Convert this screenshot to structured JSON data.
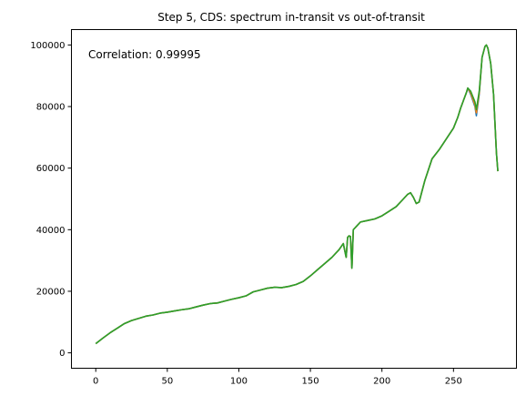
{
  "chart_data": {
    "type": "line",
    "title": "Step 5, CDS: spectrum in-transit vs out-of-transit",
    "xlabel": "",
    "ylabel": "",
    "xlim": [
      -17,
      294
    ],
    "ylim": [
      -5000,
      105000
    ],
    "xticks": [
      0,
      50,
      100,
      150,
      200,
      250
    ],
    "yticks": [
      0,
      20000,
      40000,
      60000,
      80000,
      100000
    ],
    "grid": false,
    "annotation": "Correlation: 0.99995",
    "series": [
      {
        "color": "#1f77b4",
        "x": [
          0,
          5,
          10,
          15,
          20,
          25,
          30,
          35,
          40,
          45,
          50,
          55,
          60,
          65,
          70,
          75,
          80,
          85,
          90,
          95,
          100,
          105,
          110,
          115,
          120,
          125,
          130,
          135,
          140,
          145,
          150,
          155,
          160,
          165,
          170,
          173,
          175,
          176,
          177,
          178,
          179,
          180,
          181,
          182,
          185,
          190,
          195,
          200,
          205,
          210,
          215,
          218,
          220,
          222,
          224,
          226,
          230,
          235,
          240,
          245,
          250,
          253,
          255,
          257,
          259,
          260,
          262,
          265,
          266,
          268,
          270,
          272,
          273,
          274,
          276,
          278,
          280,
          281
        ],
        "y": [
          3000,
          4800,
          6500,
          8000,
          9500,
          10500,
          11200,
          11900,
          12300,
          12900,
          13200,
          13600,
          14000,
          14300,
          14900,
          15500,
          16000,
          16200,
          16800,
          17400,
          17900,
          18500,
          19800,
          20400,
          21000,
          21300,
          21200,
          21600,
          22200,
          23200,
          25000,
          27000,
          29000,
          31000,
          33500,
          35500,
          31000,
          37500,
          38000,
          37800,
          27500,
          40000,
          40500,
          41000,
          42500,
          43000,
          43500,
          44500,
          46000,
          47500,
          50000,
          51500,
          52000,
          50500,
          48500,
          49000,
          56000,
          63000,
          66000,
          69500,
          73000,
          76500,
          79500,
          82000,
          84500,
          86000,
          84000,
          80000,
          77000,
          84000,
          96000,
          99500,
          100000,
          99000,
          94000,
          84000,
          65000,
          59000
        ]
      },
      {
        "color": "#ff7f0e",
        "x": [
          0,
          5,
          10,
          15,
          20,
          25,
          30,
          35,
          40,
          45,
          50,
          55,
          60,
          65,
          70,
          75,
          80,
          85,
          90,
          95,
          100,
          105,
          110,
          115,
          120,
          125,
          130,
          135,
          140,
          145,
          150,
          155,
          160,
          165,
          170,
          173,
          175,
          176,
          177,
          178,
          179,
          180,
          181,
          182,
          185,
          190,
          195,
          200,
          205,
          210,
          215,
          218,
          220,
          222,
          224,
          226,
          230,
          235,
          240,
          245,
          250,
          253,
          255,
          257,
          259,
          260,
          262,
          265,
          266,
          268,
          270,
          272,
          273,
          274,
          276,
          278,
          280,
          281
        ],
        "y": [
          3000,
          4800,
          6500,
          8000,
          9500,
          10500,
          11200,
          11900,
          12300,
          12900,
          13200,
          13600,
          14000,
          14300,
          14900,
          15500,
          16000,
          16200,
          16800,
          17400,
          17900,
          18500,
          19800,
          20400,
          21000,
          21300,
          21200,
          21600,
          22200,
          23200,
          25000,
          27000,
          29000,
          31000,
          33500,
          35500,
          31000,
          37500,
          38000,
          37800,
          27500,
          40000,
          40500,
          41000,
          42500,
          43000,
          43500,
          44500,
          46000,
          47500,
          50000,
          51500,
          52000,
          50500,
          48500,
          49000,
          56000,
          63000,
          66000,
          69500,
          73000,
          76500,
          79500,
          82000,
          84500,
          86000,
          84500,
          80500,
          78000,
          84500,
          96000,
          99500,
          100000,
          99000,
          94000,
          84000,
          65000,
          59000
        ]
      },
      {
        "color": "#2ca02c",
        "x": [
          0,
          5,
          10,
          15,
          20,
          25,
          30,
          35,
          40,
          45,
          50,
          55,
          60,
          65,
          70,
          75,
          80,
          85,
          90,
          95,
          100,
          105,
          110,
          115,
          120,
          125,
          130,
          135,
          140,
          145,
          150,
          155,
          160,
          165,
          170,
          173,
          175,
          176,
          177,
          178,
          179,
          180,
          181,
          182,
          185,
          190,
          195,
          200,
          205,
          210,
          215,
          218,
          220,
          222,
          224,
          226,
          230,
          235,
          240,
          245,
          250,
          253,
          255,
          257,
          259,
          260,
          262,
          265,
          266,
          268,
          270,
          272,
          273,
          274,
          276,
          278,
          280,
          281
        ],
        "y": [
          3000,
          4800,
          6500,
          8000,
          9500,
          10500,
          11200,
          11900,
          12300,
          12900,
          13200,
          13600,
          14000,
          14300,
          14900,
          15500,
          16000,
          16200,
          16800,
          17400,
          17900,
          18500,
          19800,
          20400,
          21000,
          21300,
          21200,
          21600,
          22200,
          23200,
          25000,
          27000,
          29000,
          31000,
          33500,
          35500,
          31000,
          37500,
          38000,
          37800,
          27500,
          40000,
          40500,
          41000,
          42500,
          43000,
          43500,
          44500,
          46000,
          47500,
          50000,
          51500,
          52000,
          50500,
          48500,
          49000,
          56000,
          63000,
          66000,
          69500,
          73000,
          76500,
          79500,
          82000,
          84500,
          86000,
          85000,
          81500,
          79000,
          85000,
          96000,
          99500,
          100000,
          99000,
          94000,
          84000,
          65000,
          59000
        ]
      }
    ]
  }
}
